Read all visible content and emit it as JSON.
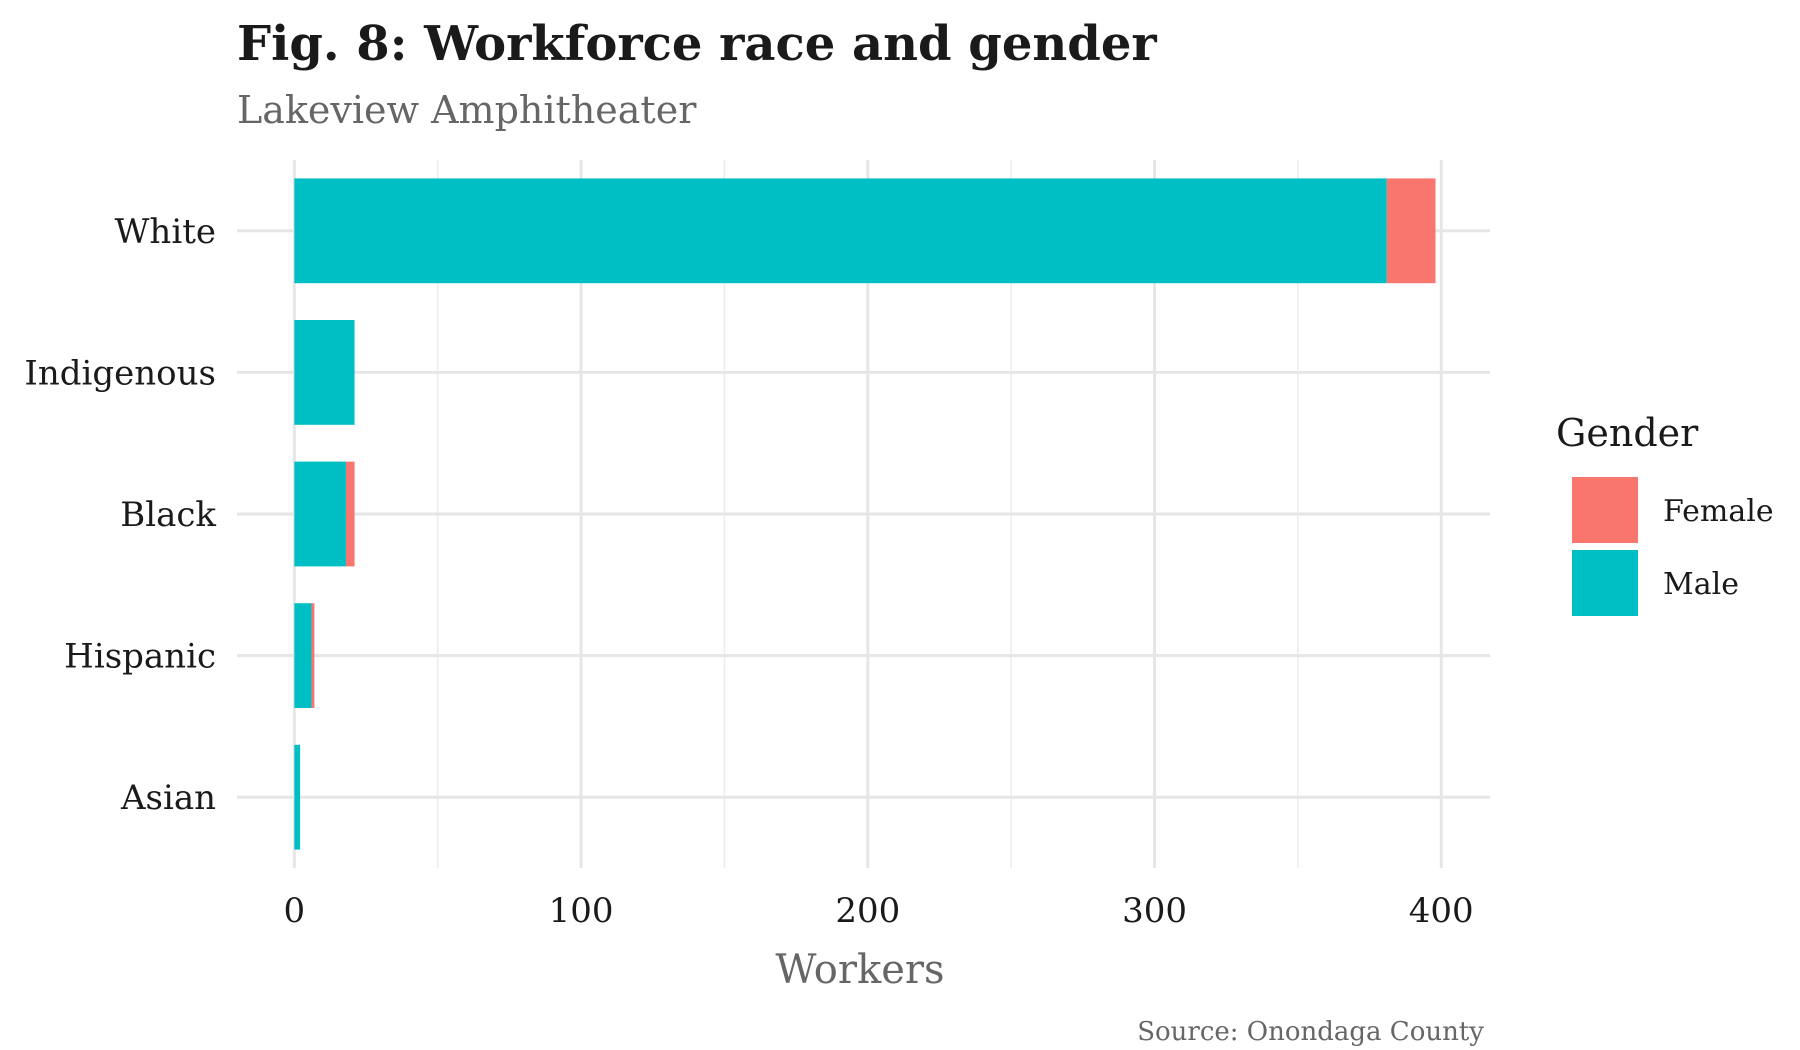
{
  "chart_data": {
    "type": "bar",
    "orientation": "horizontal",
    "stacked": true,
    "title": "Fig. 8: Workforce race and gender",
    "subtitle": "Lakeview Amphitheater",
    "xlabel": "Workers",
    "ylabel": "",
    "caption": "Source: Onondaga County",
    "categories": [
      "White",
      "Indigenous",
      "Black",
      "Hispanic",
      "Asian"
    ],
    "series": [
      {
        "name": "Male",
        "color": "#00BFC4",
        "values": [
          381,
          21,
          18,
          6,
          2
        ]
      },
      {
        "name": "Female",
        "color": "#F8766D",
        "values": [
          17,
          0,
          3,
          1,
          0
        ]
      }
    ],
    "xlim": [
      -20,
      417
    ],
    "xticks": [
      0,
      100,
      200,
      300,
      400
    ],
    "grid": true,
    "legend": {
      "title": "Gender",
      "placement": "right",
      "order": [
        "Female",
        "Male"
      ]
    }
  }
}
